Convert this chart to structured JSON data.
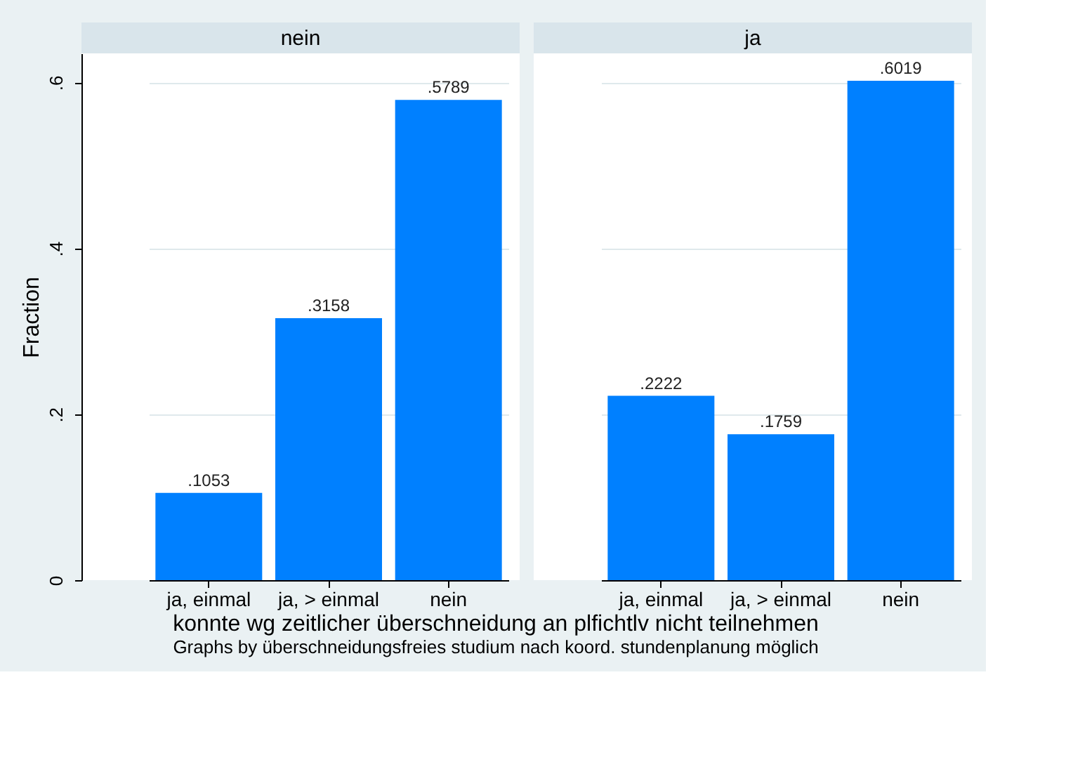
{
  "chart_data": [
    {
      "type": "bar",
      "title": "nein",
      "ylabel": "Fraction",
      "xlabel": "konnte wg zeitlicher überschneidung an plfichtlv nicht teilnehmen",
      "annotations": [
        "Graphs by überschneidungsfreies studium nach koord. stundenplanung möglich"
      ],
      "categories": [
        "ja, einmal",
        "ja, > einmal",
        "nein"
      ],
      "values": [
        0.1053,
        0.3158,
        0.5789
      ],
      "value_labels": [
        ".1053",
        ".3158",
        ".5789"
      ],
      "color": "#0080ff",
      "ylim": [
        0,
        0.635
      ],
      "yticks": [
        0,
        {
          "value": 0.2,
          "label": ".2"
        },
        {
          "value": 0.4,
          "label": ".4"
        },
        {
          "value": 0.6,
          "label": ".6"
        }
      ],
      "grid": "y"
    },
    {
      "type": "bar",
      "title": "ja",
      "categories": [
        "ja, einmal",
        "ja, > einmal",
        "nein"
      ],
      "values": [
        0.2222,
        0.1759,
        0.6019
      ],
      "value_labels": [
        ".2222",
        ".1759",
        ".6019"
      ],
      "color": "#0080ff",
      "ylim": [
        0,
        0.635
      ],
      "yticks": [
        0,
        0.2,
        0.4,
        0.6
      ],
      "grid": "y",
      "tick_labels": "x"
    }
  ]
}
